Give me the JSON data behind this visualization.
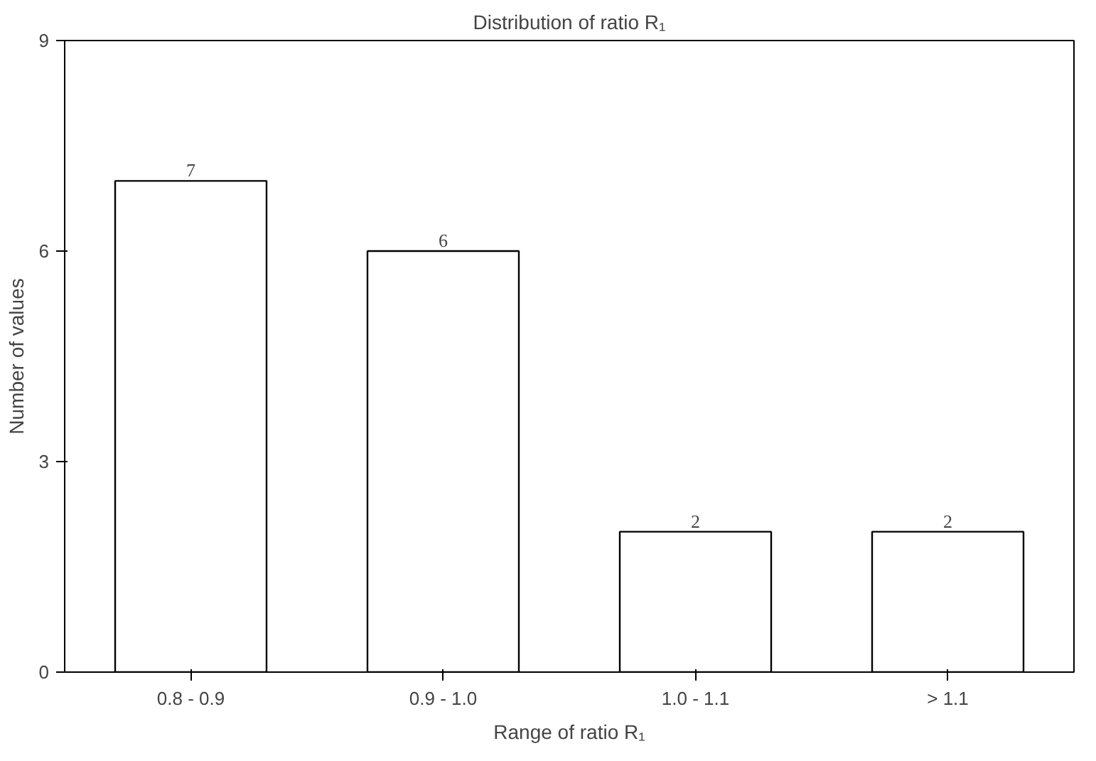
{
  "chart_data": {
    "type": "bar",
    "title": "Distribution of ratio R₁",
    "xlabel": "Range of ratio R₁",
    "ylabel": "Number of values",
    "categories": [
      "0.8 - 0.9",
      "0.9 - 1.0",
      "1.0 - 1.1",
      "> 1.1"
    ],
    "values": [
      7,
      6,
      2,
      2
    ],
    "color": "#ffffff",
    "ylim": [
      0,
      9
    ],
    "yticks": [
      0,
      3,
      6,
      9
    ],
    "grid": false,
    "data_labels": true
  }
}
